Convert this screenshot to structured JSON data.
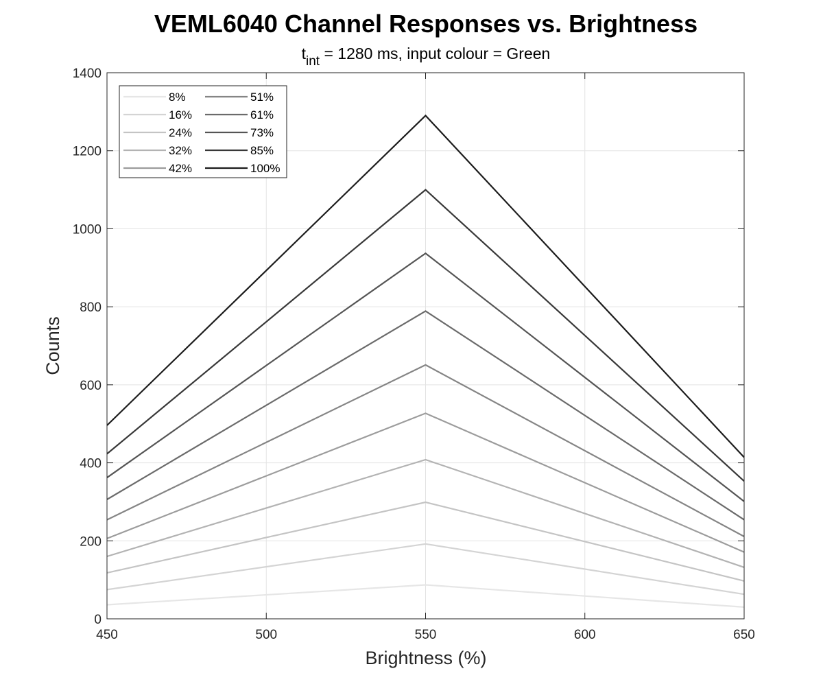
{
  "chart_data": {
    "type": "line",
    "title": "VEML6040 Channel Responses vs. Brightness",
    "subtitle": {
      "prefix": "t",
      "subscript": "int",
      "suffix": " = 1280 ms, input colour = Green"
    },
    "xlabel": "Brightness (%)",
    "ylabel": "Counts",
    "xlim": [
      450,
      650
    ],
    "ylim": [
      0,
      1400
    ],
    "xticks": [
      450,
      500,
      550,
      600,
      650
    ],
    "yticks": [
      0,
      200,
      400,
      600,
      800,
      1000,
      1200,
      1400
    ],
    "grid": true,
    "legend_position": "top-left",
    "legend_columns": 2,
    "x": [
      450,
      550,
      650
    ],
    "series": [
      {
        "name": "8%",
        "color": "#e6e6e6",
        "values": [
          36,
          87,
          30
        ]
      },
      {
        "name": "16%",
        "color": "#d4d4d4",
        "values": [
          75,
          192,
          63
        ]
      },
      {
        "name": "24%",
        "color": "#c4c4c4",
        "values": [
          118,
          299,
          97
        ]
      },
      {
        "name": "32%",
        "color": "#b3b3b3",
        "values": [
          160,
          408,
          132
        ]
      },
      {
        "name": "42%",
        "color": "#9c9c9c",
        "values": [
          206,
          527,
          171
        ]
      },
      {
        "name": "51%",
        "color": "#858585",
        "values": [
          254,
          651,
          211
        ]
      },
      {
        "name": "61%",
        "color": "#6b6b6b",
        "values": [
          306,
          789,
          254
        ]
      },
      {
        "name": "73%",
        "color": "#555555",
        "values": [
          362,
          937,
          301
        ]
      },
      {
        "name": "85%",
        "color": "#383838",
        "values": [
          423,
          1100,
          353
        ]
      },
      {
        "name": "100%",
        "color": "#1c1c1c",
        "values": [
          496,
          1290,
          414
        ]
      }
    ]
  }
}
